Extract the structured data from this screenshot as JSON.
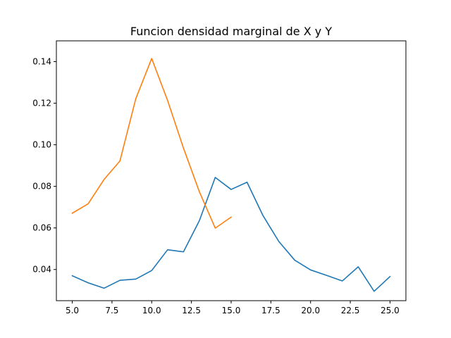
{
  "chart_data": {
    "type": "line",
    "title": "Funcion densidad marginal de X y Y",
    "xlabel": "",
    "ylabel": "",
    "xlim": [
      4.0,
      26.0
    ],
    "ylim": [
      0.025,
      0.15
    ],
    "grid": false,
    "x_ticks": [
      5.0,
      7.5,
      10.0,
      12.5,
      15.0,
      17.5,
      20.0,
      22.5,
      25.0
    ],
    "x_tick_labels": [
      "5.0",
      "7.5",
      "10.0",
      "12.5",
      "15.0",
      "17.5",
      "20.0",
      "22.5",
      "25.0"
    ],
    "y_ticks": [
      0.04,
      0.06,
      0.08,
      0.1,
      0.12,
      0.14
    ],
    "y_tick_labels": [
      "0.04",
      "0.06",
      "0.08",
      "0.10",
      "0.12",
      "0.14"
    ],
    "series": [
      {
        "color": "#1f77b4",
        "x": [
          5,
          6,
          7,
          8,
          9,
          10,
          11,
          12,
          13,
          14,
          15,
          16,
          17,
          18,
          19,
          20,
          21,
          22,
          23,
          24,
          25
        ],
        "y": [
          0.037,
          0.0336,
          0.031,
          0.0348,
          0.0354,
          0.0395,
          0.0495,
          0.0485,
          0.0635,
          0.0843,
          0.0785,
          0.082,
          0.066,
          0.0535,
          0.0445,
          0.0398,
          0.0372,
          0.0345,
          0.0413,
          0.0295,
          0.0366
        ]
      },
      {
        "color": "#ff7f0e",
        "x": [
          5,
          6,
          7,
          8,
          9,
          10,
          11,
          12,
          13,
          14,
          15
        ],
        "y": [
          0.0671,
          0.0716,
          0.0833,
          0.0922,
          0.1222,
          0.1415,
          0.1213,
          0.0984,
          0.0774,
          0.0599,
          0.0652
        ]
      }
    ]
  }
}
